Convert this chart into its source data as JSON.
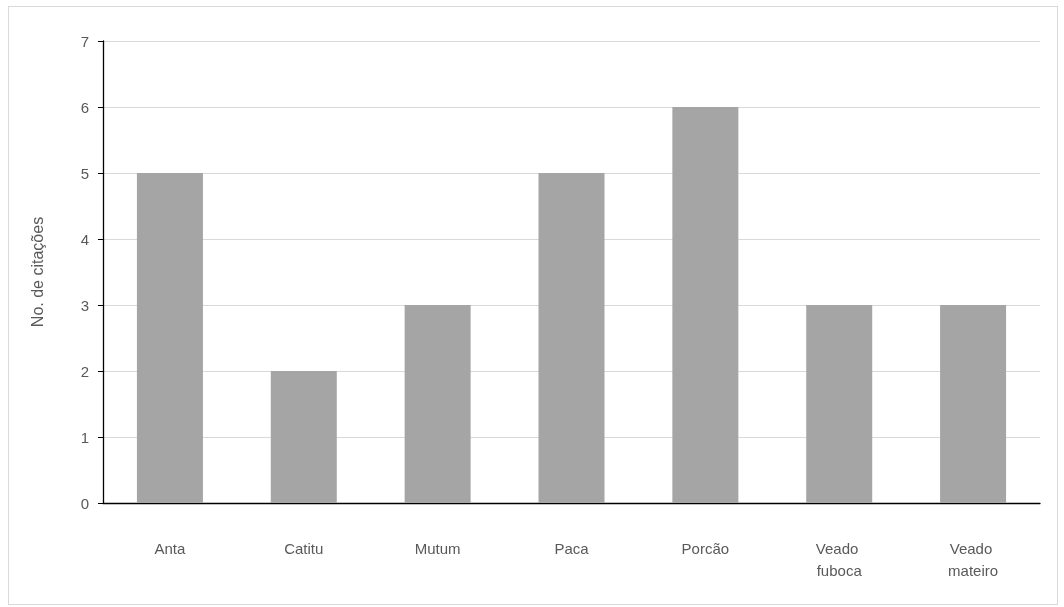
{
  "chart_data": {
    "type": "bar",
    "ylabel": "No. de citações",
    "categories": [
      "Anta",
      "Catitu",
      "Mutum",
      "Paca",
      "Porcão",
      "Veado fuboca",
      "Veado mateiro"
    ],
    "values": [
      5,
      2,
      3,
      5,
      6,
      3,
      3
    ],
    "color": "#a5a5a5",
    "ylim": [
      0,
      7
    ],
    "yticks": [
      0,
      1,
      2,
      3,
      4,
      5,
      6,
      7
    ],
    "grid": "y"
  }
}
